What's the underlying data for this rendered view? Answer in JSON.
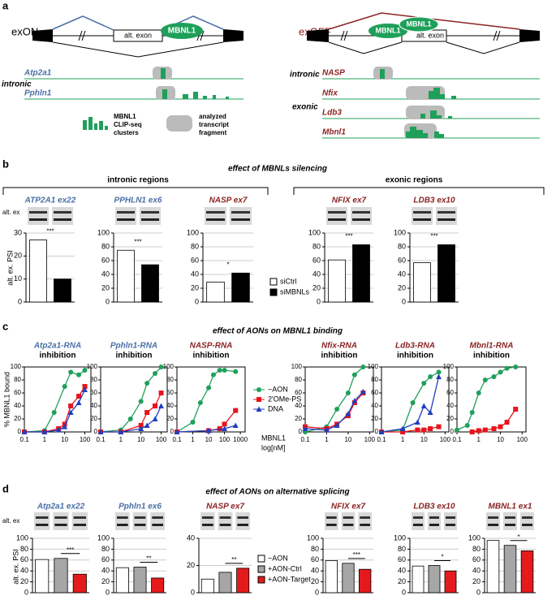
{
  "panel_labels": [
    "a",
    "b",
    "c",
    "d"
  ],
  "panel_a": {
    "left": {
      "label": "exON",
      "alt_exon": "alt. exon",
      "protein": "MBNL1",
      "region": "intronic",
      "tracks": [
        "Atp2a1",
        "Pphln1"
      ]
    },
    "right": {
      "label": "exOFF",
      "alt_exon": "alt. exon",
      "proteins": [
        "MBNL1",
        "MBNL1"
      ],
      "regions": [
        "intronic",
        "exonic"
      ],
      "tracks": [
        "NASP",
        "Nfix",
        "Ldb3",
        "Mbnl1"
      ]
    },
    "legend": {
      "clusters": [
        "MBNL1",
        "CLIP-seq",
        "clusters"
      ],
      "fragment": [
        "analyzed",
        "transcript",
        "fragment"
      ]
    }
  },
  "panel_b": {
    "title": "effect of MBNLs silencing",
    "groups": [
      "intronic regions",
      "exonic regions"
    ],
    "y_label": "alt. ex. PSI",
    "gel_label": "alt. ex",
    "legend": [
      {
        "name": "siCtrl",
        "color": "#ffffff"
      },
      {
        "name": "siMBNLs",
        "color": "#000000"
      }
    ]
  },
  "panel_c": {
    "title": "effect of AONs on MBNL1 binding",
    "y_label": "% MBNL1 bound",
    "x_label": [
      "MBNL1",
      "log[nM]"
    ],
    "log_x": true,
    "legend": [
      {
        "name": "−AON",
        "color": "#1fa05a",
        "marker": "circle"
      },
      {
        "name": "2'OMe-PS",
        "color": "#e8141c",
        "marker": "square"
      },
      {
        "name": "DNA",
        "color": "#1f3fbf",
        "marker": "triangle"
      }
    ]
  },
  "panel_d": {
    "title": "effect of AONs on alternative splicing",
    "y_label": "alt. ex. PSI",
    "gel_label": "alt. ex",
    "legend": [
      {
        "name": "−AON",
        "color": "#ffffff"
      },
      {
        "name": "+AON-Ctrl",
        "color": "#a6a6a6"
      },
      {
        "name": "+AON-Target",
        "color": "#e41a1c"
      }
    ]
  },
  "chart_data": [
    {
      "type": "bar",
      "title": "ATP2A1 ex22",
      "title_color": "#4a6fa5",
      "values": [
        27,
        10
      ],
      "ylim": [
        0,
        30
      ],
      "yticks": [
        0,
        10,
        20,
        30
      ],
      "annotation": "***",
      "grid": true
    },
    {
      "type": "bar",
      "title": "PPHLN1 ex6",
      "title_color": "#4a6fa5",
      "values": [
        75,
        54
      ],
      "ylim": [
        0,
        100
      ],
      "yticks": [
        0,
        20,
        40,
        60,
        80,
        100
      ],
      "annotation": "***",
      "grid": true
    },
    {
      "type": "bar",
      "title": "NASP ex7",
      "title_color": "#8b2323",
      "values": [
        29,
        42
      ],
      "ylim": [
        0,
        100
      ],
      "yticks": [
        0,
        20,
        40,
        60,
        80,
        100
      ],
      "annotation": "*",
      "grid": true
    },
    {
      "type": "bar",
      "title": "NFIX ex7",
      "title_color": "#8b2323",
      "values": [
        61,
        83
      ],
      "ylim": [
        0,
        100
      ],
      "yticks": [
        0,
        20,
        40,
        60,
        80,
        100
      ],
      "annotation": "***",
      "grid": true
    },
    {
      "type": "bar",
      "title": "LDB3 ex10",
      "title_color": "#8b2323",
      "values": [
        57,
        83
      ],
      "ylim": [
        0,
        100
      ],
      "yticks": [
        0,
        20,
        40,
        60,
        80,
        100
      ],
      "annotation": "***",
      "grid": true
    },
    {
      "type": "scatter",
      "title": "Atp2a1-RNA",
      "subtitle": "inhibition",
      "title_color": "#4a6fa5",
      "xlim": [
        0.1,
        200
      ],
      "xticks": [
        0.1,
        1,
        10,
        100
      ],
      "ylim": [
        0,
        100
      ],
      "yticks": [
        0,
        20,
        40,
        60,
        80,
        100
      ],
      "series": [
        {
          "x": [
            0.1,
            1,
            3,
            10,
            20,
            50,
            100
          ],
          "values": [
            0,
            2,
            30,
            70,
            92,
            88,
            95
          ]
        },
        {
          "x": [
            0.1,
            1,
            5,
            10,
            20,
            50,
            100
          ],
          "values": [
            0,
            0,
            5,
            12,
            40,
            55,
            70
          ]
        },
        {
          "x": [
            0.1,
            1,
            5,
            10,
            20,
            50,
            100
          ],
          "values": [
            0,
            0,
            3,
            8,
            30,
            45,
            65
          ]
        }
      ]
    },
    {
      "type": "scatter",
      "title": "Pphln1-RNA",
      "subtitle": "inhibition",
      "title_color": "#4a6fa5",
      "xlim": [
        0.1,
        200
      ],
      "xticks": [
        0.1,
        1,
        10,
        100
      ],
      "ylim": [
        0,
        100
      ],
      "yticks": [
        0,
        20,
        40,
        60,
        80,
        100
      ],
      "series": [
        {
          "x": [
            0.1,
            1,
            3,
            10,
            20,
            50,
            100
          ],
          "values": [
            0,
            3,
            20,
            47,
            75,
            90,
            100
          ]
        },
        {
          "x": [
            0.1,
            1,
            10,
            20,
            50,
            100
          ],
          "values": [
            0,
            0,
            10,
            30,
            40,
            60
          ]
        },
        {
          "x": [
            0.1,
            1,
            10,
            20,
            50,
            100
          ],
          "values": [
            0,
            0,
            5,
            10,
            20,
            40
          ]
        }
      ]
    },
    {
      "type": "scatter",
      "title": "NASP-RNA",
      "subtitle": "inhibition",
      "title_color": "#8b2323",
      "xlim": [
        0.1,
        2000
      ],
      "xticks": [
        0.1,
        1,
        10,
        100,
        1000
      ],
      "ylim": [
        0,
        100
      ],
      "yticks": [
        0,
        20,
        40,
        60,
        80,
        100
      ],
      "series": [
        {
          "x": [
            0.1,
            1,
            3,
            10,
            20,
            50,
            100,
            500
          ],
          "values": [
            0,
            15,
            45,
            68,
            88,
            95,
            95,
            93
          ]
        },
        {
          "x": [
            0.1,
            10,
            50,
            100,
            500
          ],
          "values": [
            0,
            2,
            5,
            12,
            33
          ]
        },
        {
          "x": [
            0.1,
            10,
            100,
            500
          ],
          "values": [
            0,
            2,
            5,
            10
          ]
        }
      ]
    },
    {
      "type": "scatter",
      "title": "Nfix-RNA",
      "subtitle": "inhibition",
      "title_color": "#8b2323",
      "xlim": [
        0.1,
        150
      ],
      "xticks": [
        0.1,
        1,
        10,
        100
      ],
      "ylim": [
        0,
        100
      ],
      "yticks": [
        0,
        20,
        40,
        60,
        80,
        100
      ],
      "series": [
        {
          "x": [
            0.1,
            1,
            3,
            10,
            20,
            50
          ],
          "values": [
            0,
            8,
            35,
            60,
            88,
            100
          ]
        },
        {
          "x": [
            0.1,
            1,
            3,
            10,
            20,
            50
          ],
          "values": [
            8,
            5,
            12,
            25,
            45,
            60
          ]
        },
        {
          "x": [
            0.1,
            1,
            3,
            10,
            20,
            50
          ],
          "values": [
            5,
            3,
            10,
            28,
            48,
            62
          ]
        }
      ]
    },
    {
      "type": "scatter",
      "title": "Ldb3-RNA",
      "subtitle": "inhibition",
      "title_color": "#8b2323",
      "xlim": [
        0.1,
        150
      ],
      "xticks": [
        0.1,
        1,
        10,
        100
      ],
      "ylim": [
        0,
        100
      ],
      "yticks": [
        0,
        20,
        40,
        60,
        80,
        100
      ],
      "series": [
        {
          "x": [
            0.1,
            1,
            3,
            10,
            20,
            50
          ],
          "values": [
            0,
            3,
            45,
            75,
            85,
            92
          ]
        },
        {
          "x": [
            0.1,
            1,
            5,
            10,
            20,
            50
          ],
          "values": [
            0,
            0,
            3,
            3,
            5,
            8
          ]
        },
        {
          "x": [
            0.1,
            1,
            5,
            10,
            20,
            50
          ],
          "values": [
            0,
            5,
            15,
            40,
            30,
            85
          ]
        }
      ]
    },
    {
      "type": "scatter",
      "title": "Mbnl1-RNA",
      "subtitle": "inhibition",
      "title_color": "#8b2323",
      "xlim": [
        0.1,
        150
      ],
      "xticks": [
        0.1,
        1,
        10,
        100
      ],
      "ylim": [
        0,
        100
      ],
      "yticks": [
        0,
        20,
        40,
        60,
        80,
        100
      ],
      "series": [
        {
          "x": [
            0.1,
            0.3,
            0.5,
            1,
            2,
            5,
            10,
            20,
            50
          ],
          "values": [
            3,
            10,
            30,
            60,
            80,
            85,
            92,
            98,
            100
          ]
        },
        {
          "x": [
            0.5,
            1,
            2,
            5,
            10,
            20,
            50
          ],
          "values": [
            0,
            2,
            3,
            5,
            8,
            15,
            35
          ]
        }
      ]
    },
    {
      "type": "bar",
      "title": "Atp2a1 ex22",
      "title_color": "#4a6fa5",
      "values": [
        61,
        63,
        34
      ],
      "ylim": [
        0,
        100
      ],
      "yticks": [
        0,
        20,
        40,
        60,
        80,
        100
      ],
      "annotation": "***",
      "grid": true
    },
    {
      "type": "bar",
      "title": "Pphln1 ex6",
      "title_color": "#4a6fa5",
      "values": [
        46,
        47,
        27
      ],
      "ylim": [
        0,
        100
      ],
      "yticks": [
        0,
        20,
        40,
        60,
        80,
        100
      ],
      "annotation": "**",
      "grid": true
    },
    {
      "type": "bar",
      "title": "NASP ex7",
      "title_color": "#8b2323",
      "values": [
        10,
        15,
        18
      ],
      "ylim": [
        0,
        40
      ],
      "yticks": [
        0,
        20,
        40
      ],
      "annotation": "**",
      "grid": true
    },
    {
      "type": "bar",
      "title": "NFIX ex7",
      "title_color": "#8b2323",
      "values": [
        59,
        54,
        43
      ],
      "ylim": [
        0,
        100
      ],
      "yticks": [
        0,
        20,
        40,
        60,
        80,
        100
      ],
      "annotation": "***",
      "grid": true
    },
    {
      "type": "bar",
      "title": "LDB3 ex10",
      "title_color": "#8b2323",
      "values": [
        49,
        50,
        40
      ],
      "ylim": [
        0,
        100
      ],
      "yticks": [
        0,
        20,
        40,
        60,
        80,
        100
      ],
      "annotation": "*",
      "grid": true
    },
    {
      "type": "bar",
      "title": "MBNL1 ex1",
      "title_color": "#8b2323",
      "values": [
        96,
        87,
        77
      ],
      "ylim": [
        0,
        100
      ],
      "yticks": [
        0,
        20,
        40,
        60,
        80,
        100
      ],
      "annotation": "*",
      "grid": true
    }
  ]
}
